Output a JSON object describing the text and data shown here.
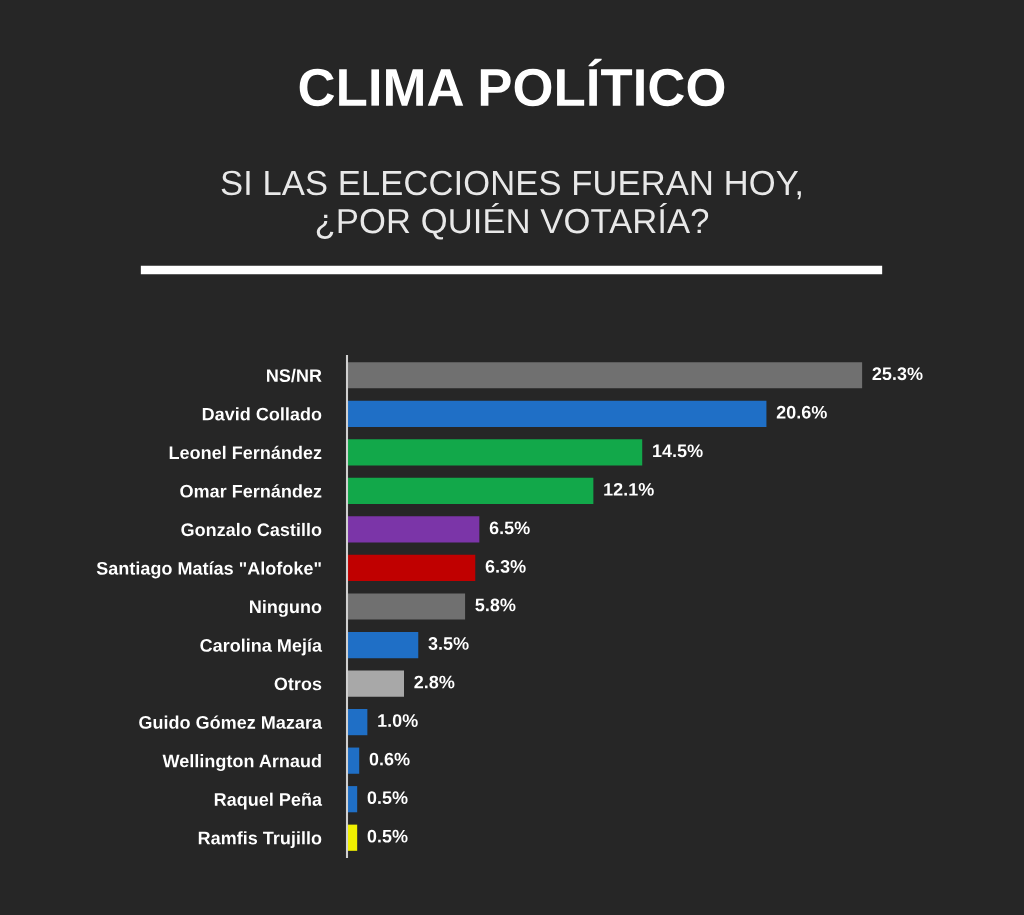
{
  "chart_data": {
    "type": "bar",
    "orientation": "horizontal",
    "title": "CLIMA POLÍTICO",
    "subtitle": "SI LAS ELECCIONES FUERAN HOY,\n¿POR QUIÉN VOTARÍA?",
    "categories": [
      "NS/NR",
      "David Collado",
      "Leonel Fernández",
      "Omar Fernández",
      "Gonzalo Castillo",
      "Santiago Matías \"Alofoke\"",
      "Ninguno",
      "Carolina Mejía",
      "Otros",
      "Guido Gómez Mazara",
      "Wellington Arnaud",
      "Raquel Peña",
      "Ramfis Trujillo"
    ],
    "values": [
      25.3,
      20.6,
      14.5,
      12.1,
      6.5,
      6.3,
      5.8,
      3.5,
      2.8,
      1.0,
      0.6,
      0.5,
      0.5
    ],
    "value_labels": [
      "25.3%",
      "20.6%",
      "14.5%",
      "12.1%",
      "6.5%",
      "6.3%",
      "5.8%",
      "3.5%",
      "2.8%",
      "1.0%",
      "0.6%",
      "0.5%",
      "0.5%"
    ],
    "colors": [
      "#707070",
      "#1f6fc6",
      "#12a84a",
      "#12a84a",
      "#7b35a8",
      "#c00000",
      "#707070",
      "#1f6fc6",
      "#a8a8a8",
      "#1f6fc6",
      "#1f6fc6",
      "#1f6fc6",
      "#f0f000"
    ],
    "tick_labels": "y"
  }
}
